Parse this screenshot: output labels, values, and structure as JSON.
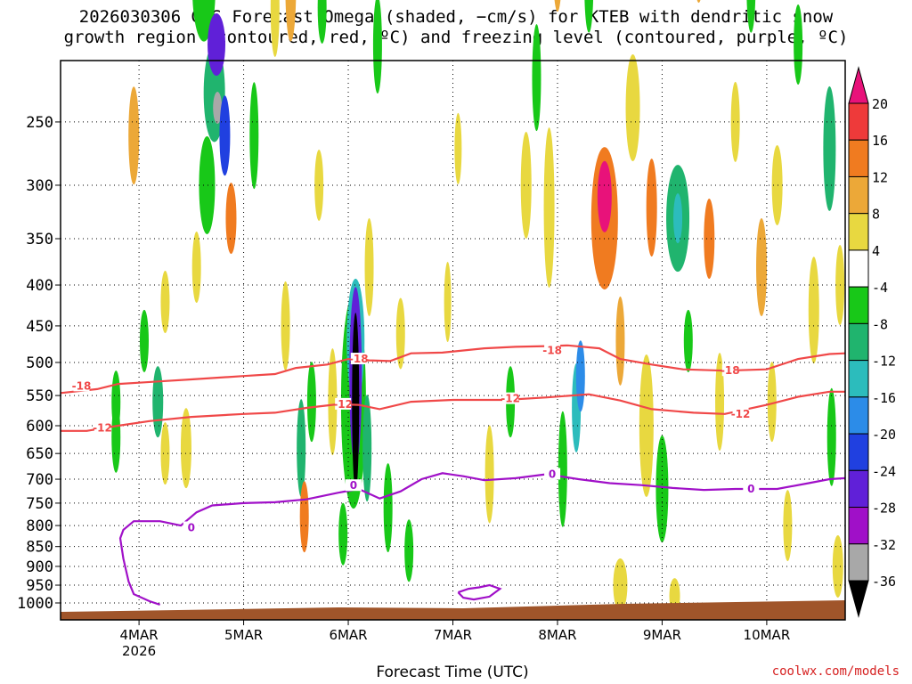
{
  "title_line1": "2026030306 GFS Forecast Omega (shaded, −cm/s) for KTEB with dendritic snow",
  "title_line2": "growth region (contoured, red, ºC) and freezing level (contoured, purple, ºC)",
  "credit": "coolwx.com/models",
  "chart_data": {
    "type": "heatmap",
    "xlabel": "Forecast Time (UTC)",
    "ylabel": "Pressure (hPa)",
    "x_ticks": [
      "4MAR",
      "5MAR",
      "6MAR",
      "7MAR",
      "8MAR",
      "9MAR",
      "10MAR"
    ],
    "x_year_label": "2026",
    "y_ticks": [
      250,
      300,
      350,
      400,
      450,
      500,
      550,
      600,
      650,
      700,
      750,
      800,
      850,
      900,
      950,
      1000
    ],
    "x_range_days": [
      3.25,
      10.75
    ],
    "colorbar_labels": [
      "20",
      "16",
      "12",
      "8",
      "4",
      "-4",
      "-8",
      "-12",
      "-16",
      "-20",
      "-24",
      "-28",
      "-32",
      "-36"
    ],
    "colorbar_colors": [
      "#e8127a",
      "#ee3a3a",
      "#f07b20",
      "#eca838",
      "#e8d840",
      "#ffffff",
      "#18c818",
      "#20b46e",
      "#2cbcbc",
      "#2c8ce8",
      "#2040e0",
      "#6020d8",
      "#a010c8",
      "#a8a8a8",
      "#000000"
    ],
    "contours": [
      {
        "name": "dgz_top",
        "label": "-18",
        "color": "#f04848",
        "label_positions": [
          [
            3.45,
            535
          ],
          [
            6.1,
            495
          ],
          [
            7.95,
            483
          ],
          [
            9.65,
            512
          ]
        ],
        "points": [
          [
            3.25,
            546
          ],
          [
            3.6,
            540
          ],
          [
            3.8,
            532
          ],
          [
            4.0,
            530
          ],
          [
            4.2,
            528
          ],
          [
            4.5,
            525
          ],
          [
            5.0,
            520
          ],
          [
            5.3,
            517
          ],
          [
            5.5,
            508
          ],
          [
            5.8,
            503
          ],
          [
            6.0,
            495
          ],
          [
            6.2,
            497
          ],
          [
            6.4,
            498
          ],
          [
            6.6,
            487
          ],
          [
            6.9,
            486
          ],
          [
            7.3,
            480
          ],
          [
            7.6,
            478
          ],
          [
            7.9,
            477
          ],
          [
            8.1,
            476
          ],
          [
            8.4,
            480
          ],
          [
            8.6,
            495
          ],
          [
            8.9,
            503
          ],
          [
            9.2,
            510
          ],
          [
            9.6,
            512
          ],
          [
            10.0,
            510
          ],
          [
            10.3,
            495
          ],
          [
            10.6,
            488
          ],
          [
            10.75,
            487
          ]
        ]
      },
      {
        "name": "dgz_bottom",
        "label": "-12",
        "color": "#f04848",
        "label_positions": [
          [
            3.65,
            604
          ],
          [
            5.95,
            564
          ],
          [
            7.55,
            555
          ],
          [
            9.75,
            580
          ]
        ],
        "points": [
          [
            3.25,
            609
          ],
          [
            3.5,
            609
          ],
          [
            3.8,
            600
          ],
          [
            4.1,
            592
          ],
          [
            4.5,
            585
          ],
          [
            5.0,
            580
          ],
          [
            5.3,
            578
          ],
          [
            5.6,
            570
          ],
          [
            5.9,
            564
          ],
          [
            6.1,
            565
          ],
          [
            6.3,
            572
          ],
          [
            6.6,
            560
          ],
          [
            7.0,
            557
          ],
          [
            7.5,
            557
          ],
          [
            7.9,
            553
          ],
          [
            8.3,
            548
          ],
          [
            8.6,
            558
          ],
          [
            8.9,
            572
          ],
          [
            9.3,
            578
          ],
          [
            9.6,
            580
          ],
          [
            10.0,
            565
          ],
          [
            10.3,
            552
          ],
          [
            10.6,
            544
          ],
          [
            10.75,
            544
          ]
        ]
      },
      {
        "name": "freezing_level",
        "label": "0",
        "color": "#a010c8",
        "label_positions": [
          [
            4.5,
            805
          ],
          [
            6.05,
            713
          ],
          [
            7.95,
            690
          ],
          [
            9.85,
            720
          ]
        ],
        "points": [
          [
            4.2,
            1005
          ],
          [
            4.1,
            995
          ],
          [
            3.95,
            975
          ],
          [
            3.9,
            940
          ],
          [
            3.85,
            880
          ],
          [
            3.82,
            830
          ],
          [
            3.85,
            810
          ],
          [
            3.95,
            790
          ],
          [
            4.2,
            790
          ],
          [
            4.4,
            800
          ],
          [
            4.55,
            770
          ],
          [
            4.7,
            755
          ],
          [
            5.0,
            750
          ],
          [
            5.3,
            748
          ],
          [
            5.6,
            742
          ],
          [
            5.9,
            728
          ],
          [
            6.1,
            720
          ],
          [
            6.3,
            740
          ],
          [
            6.5,
            725
          ],
          [
            6.7,
            700
          ],
          [
            6.9,
            688
          ],
          [
            7.1,
            694
          ],
          [
            7.3,
            702
          ],
          [
            7.6,
            698
          ],
          [
            7.9,
            690
          ],
          [
            8.2,
            700
          ],
          [
            8.5,
            708
          ],
          [
            8.8,
            712
          ],
          [
            9.1,
            718
          ],
          [
            9.4,
            722
          ],
          [
            9.7,
            720
          ],
          [
            10.1,
            720
          ],
          [
            10.4,
            708
          ],
          [
            10.6,
            700
          ],
          [
            10.75,
            698
          ]
        ]
      },
      {
        "name": "freezing_level_island",
        "label": "",
        "color": "#a010c8",
        "label_positions": [],
        "points": [
          [
            7.05,
            970
          ],
          [
            7.15,
            960
          ],
          [
            7.25,
            956
          ],
          [
            7.35,
            950
          ],
          [
            7.45,
            960
          ],
          [
            7.35,
            982
          ],
          [
            7.2,
            990
          ],
          [
            7.1,
            985
          ],
          [
            7.05,
            970
          ]
        ]
      }
    ]
  }
}
